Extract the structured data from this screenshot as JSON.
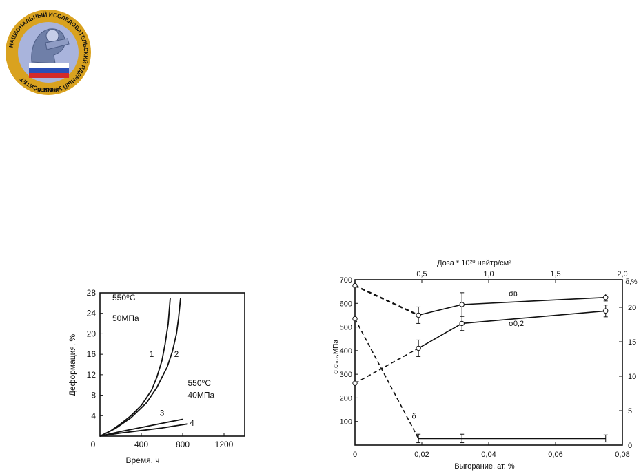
{
  "logo": {
    "ring_text": "НАЦИОНАЛЬНЫЙ ИССЛЕДОВАТЕЛЬСКИЙ ЯДЕРНЫЙ УНИВЕРСИТЕТ",
    "bottom_text": "• М И Ф И •",
    "colors": {
      "ring": "#d9a21f",
      "inner": "#a9b4dc",
      "flag_white": "#ffffff",
      "flag_blue": "#2b4fb7",
      "flag_red": "#d42a2a"
    }
  },
  "chart_data": [
    {
      "type": "line",
      "xlabel": "Время, ч",
      "ylabel": "Деформация, %",
      "xlim": [
        0,
        1400
      ],
      "ylim": [
        0,
        28
      ],
      "x_ticks": [
        0,
        400,
        800,
        1200
      ],
      "y_ticks": [
        4,
        8,
        12,
        16,
        20,
        24,
        28
      ],
      "x_tick_labels": [
        "0",
        "400",
        "800",
        "1200"
      ],
      "y_tick_labels": [
        "4",
        "8",
        "12",
        "16",
        "20",
        "24",
        "28"
      ],
      "annotations": [
        {
          "text": "550⁰С",
          "x": 120,
          "y": 26.5
        },
        {
          "text": "50МПа",
          "x": 120,
          "y": 22.5
        },
        {
          "text": "550⁰С",
          "x": 850,
          "y": 9.8
        },
        {
          "text": "40МПа",
          "x": 850,
          "y": 7.5
        }
      ],
      "series": [
        {
          "label": "1",
          "label_pos": [
            500,
            15.5
          ],
          "x": [
            0,
            100,
            200,
            300,
            400,
            500,
            550,
            600,
            630,
            660,
            680
          ],
          "y": [
            0,
            1.0,
            2.4,
            4.0,
            6.0,
            9.0,
            11.5,
            14.8,
            18.0,
            22.0,
            27.0
          ]
        },
        {
          "label": "2",
          "label_pos": [
            740,
            15.5
          ],
          "x": [
            0,
            150,
            300,
            450,
            550,
            650,
            700,
            740,
            760,
            780
          ],
          "y": [
            0,
            1.5,
            3.6,
            6.5,
            9.5,
            13.5,
            16.5,
            20.0,
            23.0,
            27.0
          ]
        },
        {
          "label": "3",
          "label_pos": [
            600,
            4.0
          ],
          "x": [
            0,
            200,
            400,
            600,
            800
          ],
          "y": [
            0,
            0.9,
            1.7,
            2.5,
            3.3
          ]
        },
        {
          "label": "4",
          "label_pos": [
            890,
            2.0
          ],
          "x": [
            0,
            200,
            400,
            600,
            850
          ],
          "y": [
            0,
            0.6,
            1.1,
            1.6,
            2.4
          ]
        }
      ]
    },
    {
      "type": "line",
      "xlabel": "Выгорание, ат. %",
      "x2label": "Доза * 10²⁰ нейтр/см²",
      "ylabel": "σ,σ₀,₂,МПа",
      "y2label": "δ,%",
      "xlim": [
        0,
        0.08
      ],
      "ylim": [
        0,
        700
      ],
      "y2lim": [
        0,
        24
      ],
      "x2lim": [
        0,
        2.0
      ],
      "x_ticks": [
        0,
        0.02,
        0.04,
        0.06,
        0.08
      ],
      "x_tick_labels": [
        "0",
        "0,02",
        "0,04",
        "0,06",
        "0,08"
      ],
      "x2_ticks": [
        0.5,
        1.0,
        1.5,
        2.0
      ],
      "x2_tick_labels": [
        "0,5",
        "1,0",
        "1,5",
        "2,0"
      ],
      "y_ticks": [
        100,
        200,
        300,
        400,
        500,
        600,
        700
      ],
      "y_tick_labels": [
        "100",
        "200",
        "300",
        "400",
        "500",
        "600",
        "700"
      ],
      "y2_ticks": [
        0,
        5,
        10,
        15,
        20
      ],
      "y2_tick_labels": [
        "0",
        "5",
        "10",
        "15",
        "20"
      ],
      "series": [
        {
          "name": "σв",
          "label": "σв",
          "x": [
            0,
            0.019,
            0.032,
            0.075
          ],
          "y": [
            675,
            550,
            595,
            625
          ],
          "err": [
            0,
            35,
            50,
            15
          ],
          "dashed_to_index": 1
        },
        {
          "name": "σ0,2",
          "label": "σ0,2",
          "x": [
            0,
            0.019,
            0.032,
            0.075
          ],
          "y": [
            262,
            410,
            515,
            568
          ],
          "err": [
            0,
            35,
            30,
            25
          ],
          "dashed_to_index": 1
        },
        {
          "name": "δ",
          "label": "δ",
          "x": [
            0,
            0.019,
            0.032,
            0.075
          ],
          "y": [
            535,
            28,
            28,
            28
          ],
          "err": [
            0,
            18,
            18,
            15
          ],
          "dashed_to_index": 1
        }
      ]
    }
  ]
}
